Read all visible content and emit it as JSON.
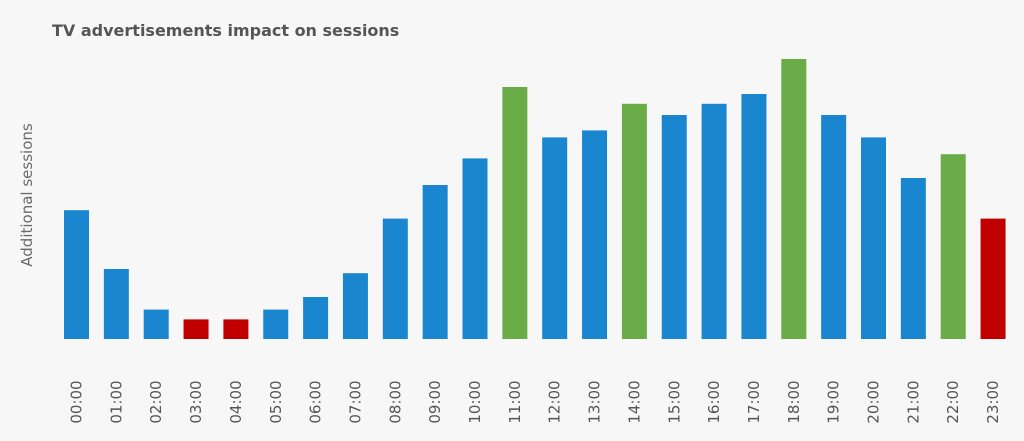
{
  "chart_data": {
    "type": "bar",
    "title": "TV advertisements impact on sessions",
    "xlabel": "",
    "ylabel": "Additional sessions",
    "ylim": [
      0,
      100
    ],
    "grid": false,
    "categories": [
      "00:00",
      "01:00",
      "02:00",
      "03:00",
      "04:00",
      "05:00",
      "06:00",
      "07:00",
      "08:00",
      "09:00",
      "10:00",
      "11:00",
      "12:00",
      "13:00",
      "14:00",
      "15:00",
      "16:00",
      "17:00",
      "18:00",
      "19:00",
      "20:00",
      "21:00",
      "22:00",
      "23:00"
    ],
    "values": [
      46,
      25,
      10.5,
      7,
      7,
      10.5,
      15,
      23.5,
      43,
      55,
      64.5,
      90,
      72,
      74.5,
      84,
      80,
      84,
      87.5,
      100,
      80,
      72,
      57.5,
      66,
      43
    ],
    "bar_status": [
      "normal",
      "normal",
      "normal",
      "low",
      "low",
      "normal",
      "normal",
      "normal",
      "normal",
      "normal",
      "normal",
      "high",
      "normal",
      "normal",
      "high",
      "normal",
      "normal",
      "normal",
      "high",
      "normal",
      "normal",
      "normal",
      "high",
      "low"
    ],
    "colors": {
      "normal": "#1a86d0",
      "high": "#6aac48",
      "low": "#c00000"
    }
  }
}
